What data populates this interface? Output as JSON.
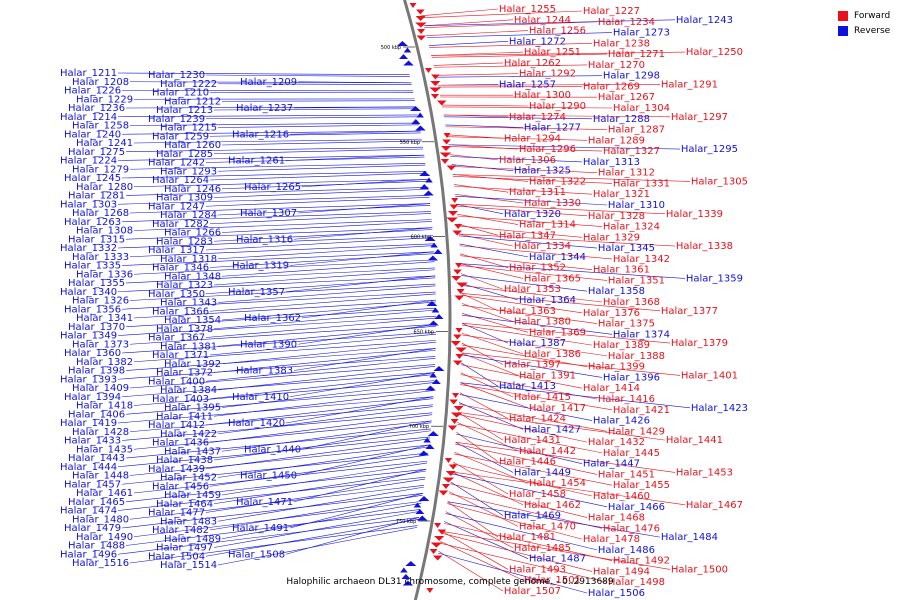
{
  "caption": "Halophilic archaeon DL31 chromosome, complete genome. - 0..2913689",
  "legend": [
    {
      "label": "Forward",
      "color": "#e8111c"
    },
    {
      "label": "Reverse",
      "color": "#1111dd"
    }
  ],
  "ticks": [
    "500 kbp",
    "550 kbp",
    "600 kbp",
    "650 kbp",
    "700 kbp",
    "750 kbp"
  ],
  "colors": {
    "forward": "#e8111c",
    "reverse": "#1111dd",
    "backbone": "#777777"
  },
  "left_labels": [
    "Halar_1211",
    "Halar_1230",
    "Halar_1208",
    "Halar_1222",
    "Halar_1209",
    "Halar_1226",
    "Halar_1210",
    "Halar_1229",
    "Halar_1212",
    "Halar_1236",
    "Halar_1213",
    "Halar_1237",
    "Halar_1214",
    "Halar_1239",
    "Halar_1258",
    "Halar_1215",
    "Halar_1240",
    "Halar_1259",
    "Halar_1216",
    "Halar_1241",
    "Halar_1260",
    "Halar_1275",
    "Halar_1285",
    "Halar_1224",
    "Halar_1242",
    "Halar_1261",
    "Halar_1279",
    "Halar_1293",
    "Halar_1245",
    "Halar_1264",
    "Halar_1280",
    "Halar_1246",
    "Halar_1265",
    "Halar_1281",
    "Halar_1309",
    "Halar_1303",
    "Halar_1247",
    "Halar_1268",
    "Halar_1284",
    "Halar_1307",
    "Halar_1263",
    "Halar_1282",
    "Halar_1308",
    "Halar_1266",
    "Halar_1315",
    "Halar_1283",
    "Halar_1316",
    "Halar_1332",
    "Halar_1317",
    "Halar_1333",
    "Halar_1318",
    "Halar_1335",
    "Halar_1346",
    "Halar_1319",
    "Halar_1336",
    "Halar_1348",
    "Halar_1355",
    "Halar_1323",
    "Halar_1340",
    "Halar_1350",
    "Halar_1357",
    "Halar_1326",
    "Halar_1343",
    "Halar_1356",
    "Halar_1366",
    "Halar_1341",
    "Halar_1354",
    "Halar_1362",
    "Halar_1370",
    "Halar_1378",
    "Halar_1349",
    "Halar_1367",
    "Halar_1373",
    "Halar_1381",
    "Halar_1390",
    "Halar_1360",
    "Halar_1371",
    "Halar_1382",
    "Halar_1392",
    "Halar_1398",
    "Halar_1372",
    "Halar_1383",
    "Halar_1393",
    "Halar_1400",
    "Halar_1409",
    "Halar_1384",
    "Halar_1394",
    "Halar_1403",
    "Halar_1410",
    "Halar_1418",
    "Halar_1395",
    "Halar_1406",
    "Halar_1411",
    "Halar_1419",
    "Halar_1412",
    "Halar_1420",
    "Halar_1428",
    "Halar_1422",
    "Halar_1433",
    "Halar_1436",
    "Halar_1435",
    "Halar_1437",
    "Halar_1440",
    "Halar_1443",
    "Halar_1438",
    "Halar_1444",
    "Halar_1439",
    "Halar_1448",
    "Halar_1452",
    "Halar_1450",
    "Halar_1457",
    "Halar_1456",
    "Halar_1461",
    "Halar_1459",
    "Halar_1465",
    "Halar_1464",
    "Halar_1471",
    "Halar_1474",
    "Halar_1477",
    "Halar_1480",
    "Halar_1483",
    "Halar_1479",
    "Halar_1482",
    "Halar_1491",
    "Halar_1490",
    "Halar_1489",
    "Halar_1488",
    "Halar_1497",
    "Halar_1496",
    "Halar_1504",
    "Halar_1508",
    "Halar_1516",
    "Halar_1514"
  ],
  "right_labels": [
    "Halar_1255",
    "Halar_1227",
    "Halar_1244",
    "Halar_1234",
    "Halar_1243",
    "Halar_1256",
    "Halar_1273",
    "Halar_1272",
    "Halar_1238",
    "Halar_1251",
    "Halar_1271",
    "Halar_1250",
    "Halar_1262",
    "Halar_1270",
    "Halar_1292",
    "Halar_1298",
    "Halar_1257",
    "Halar_1269",
    "Halar_1291",
    "Halar_1300",
    "Halar_1267",
    "Halar_1290",
    "Halar_1304",
    "Halar_1274",
    "Halar_1288",
    "Halar_1297",
    "Halar_1277",
    "Halar_1287",
    "Halar_1294",
    "Halar_1289",
    "Halar_1296",
    "Halar_1327",
    "Halar_1295",
    "Halar_1306",
    "Halar_1313",
    "Halar_1325",
    "Halar_1312",
    "Halar_1322",
    "Halar_1331",
    "Halar_1305",
    "Halar_1311",
    "Halar_1321",
    "Halar_1330",
    "Halar_1310",
    "Halar_1320",
    "Halar_1328",
    "Halar_1339",
    "Halar_1314",
    "Halar_1324",
    "Halar_1347",
    "Halar_1329",
    "Halar_1334",
    "Halar_1345",
    "Halar_1338",
    "Halar_1344",
    "Halar_1342",
    "Halar_1352",
    "Halar_1361",
    "Halar_1365",
    "Halar_1351",
    "Halar_1359",
    "Halar_1353",
    "Halar_1358",
    "Halar_1364",
    "Halar_1368",
    "Halar_1363",
    "Halar_1376",
    "Halar_1377",
    "Halar_1380",
    "Halar_1375",
    "Halar_1369",
    "Halar_1374",
    "Halar_1387",
    "Halar_1389",
    "Halar_1379",
    "Halar_1386",
    "Halar_1388",
    "Halar_1397",
    "Halar_1399",
    "Halar_1391",
    "Halar_1396",
    "Halar_1401",
    "Halar_1413",
    "Halar_1414",
    "Halar_1415",
    "Halar_1416",
    "Halar_1417",
    "Halar_1421",
    "Halar_1423",
    "Halar_1424",
    "Halar_1426",
    "Halar_1427",
    "Halar_1429",
    "Halar_1431",
    "Halar_1432",
    "Halar_1441",
    "Halar_1442",
    "Halar_1445",
    "Halar_1446",
    "Halar_1447",
    "Halar_1449",
    "Halar_1451",
    "Halar_1453",
    "Halar_1454",
    "Halar_1455",
    "Halar_1458",
    "Halar_1460",
    "Halar_1462",
    "Halar_1466",
    "Halar_1467",
    "Halar_1469",
    "Halar_1468",
    "Halar_1470",
    "Halar_1476",
    "Halar_1481",
    "Halar_1478",
    "Halar_1484",
    "Halar_1485",
    "Halar_1486",
    "Halar_1487",
    "Halar_1492",
    "Halar_1493",
    "Halar_1494",
    "Halar_1500",
    "Halar_1501",
    "Halar_1498",
    "Halar_1507",
    "Halar_1506"
  ]
}
